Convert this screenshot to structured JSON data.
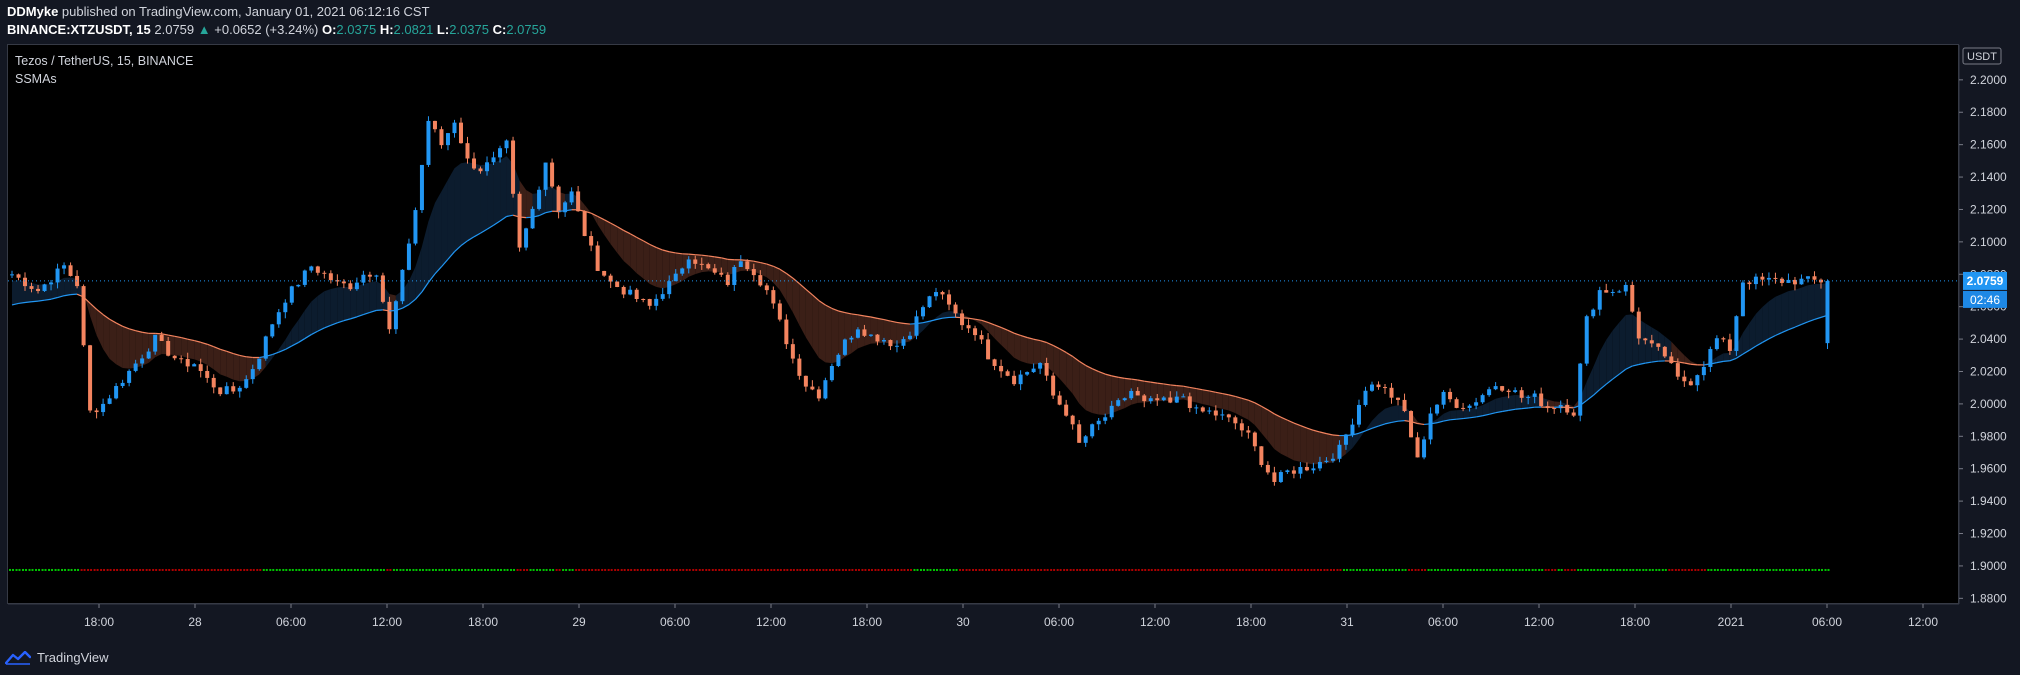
{
  "header": {
    "author": "DDMyke",
    "published_text": "published on TradingView.com, January 01, 2021 06:12:16 CST",
    "symbol": "BINANCE:XTZUSDT, 15",
    "last": "2.0759",
    "change_arrow": "▲",
    "change": "+0.0652 (+3.24%)",
    "o_label": "O:",
    "o": "2.0375",
    "h_label": "H:",
    "h": "2.0821",
    "l_label": "L:",
    "l": "2.0375",
    "c_label": "C:",
    "c": "2.0759"
  },
  "legend": {
    "title": "Tezos / TetherUS, 15, BINANCE",
    "indicator": "SSMAs"
  },
  "colors": {
    "up": "#2196f3",
    "down": "#f4845f",
    "accent_teal": "#26a69a",
    "bg": "#000000",
    "panel": "#131722",
    "dots_green": "#00c800",
    "dots_red": "#b00000"
  },
  "footer": {
    "brand": "TradingView",
    "icon": "tradingview-logo-icon"
  },
  "chart_data": {
    "type": "candlestick",
    "symbol": "XTZUSDT",
    "interval": "15",
    "currency_label": "USDT",
    "price_axis_ticks": [
      "2.2000",
      "2.1800",
      "2.1600",
      "2.1400",
      "2.1200",
      "2.1000",
      "2.0800",
      "2.0600",
      "2.0400",
      "2.0200",
      "2.0000",
      "1.9800",
      "1.9600",
      "1.9400",
      "1.9200",
      "1.9000",
      "1.8800"
    ],
    "ylim": [
      1.8765,
      2.2215
    ],
    "time_axis_labels": [
      "18:00",
      "28",
      "06:00",
      "12:00",
      "18:00",
      "29",
      "06:00",
      "12:00",
      "18:00",
      "30",
      "06:00",
      "12:00",
      "18:00",
      "31",
      "06:00",
      "12:00",
      "18:00",
      "2021",
      "06:00",
      "12:00"
    ],
    "last_price": "2.0759",
    "countdown": "02:46",
    "dots_level": 1.8975,
    "close_path": [
      [
        0,
        2.08
      ],
      [
        4,
        2.07
      ],
      [
        8,
        2.085
      ],
      [
        10,
        2.074
      ],
      [
        12,
        1.995
      ],
      [
        14,
        2.0
      ],
      [
        16,
        2.01
      ],
      [
        18,
        2.02
      ],
      [
        20,
        2.03
      ],
      [
        22,
        2.04
      ],
      [
        24,
        2.032
      ],
      [
        26,
        2.025
      ],
      [
        28,
        2.025
      ],
      [
        30,
        2.015
      ],
      [
        32,
        2.008
      ],
      [
        34,
        2.008
      ],
      [
        36,
        2.015
      ],
      [
        38,
        2.03
      ],
      [
        40,
        2.05
      ],
      [
        42,
        2.065
      ],
      [
        44,
        2.075
      ],
      [
        46,
        2.085
      ],
      [
        48,
        2.08
      ],
      [
        50,
        2.074
      ],
      [
        52,
        2.073
      ],
      [
        54,
        2.08
      ],
      [
        56,
        2.082
      ],
      [
        58,
        2.045
      ],
      [
        60,
        2.08
      ],
      [
        62,
        2.12
      ],
      [
        64,
        2.175
      ],
      [
        66,
        2.16
      ],
      [
        68,
        2.175
      ],
      [
        70,
        2.15
      ],
      [
        72,
        2.145
      ],
      [
        74,
        2.15
      ],
      [
        76,
        2.16
      ],
      [
        78,
        2.095
      ],
      [
        80,
        2.12
      ],
      [
        82,
        2.15
      ],
      [
        84,
        2.12
      ],
      [
        86,
        2.13
      ],
      [
        88,
        2.105
      ],
      [
        90,
        2.085
      ],
      [
        92,
        2.075
      ],
      [
        94,
        2.07
      ],
      [
        96,
        2.065
      ],
      [
        98,
        2.06
      ],
      [
        100,
        2.07
      ],
      [
        102,
        2.078
      ],
      [
        104,
        2.092
      ],
      [
        106,
        2.085
      ],
      [
        108,
        2.08
      ],
      [
        110,
        2.075
      ],
      [
        112,
        2.09
      ],
      [
        114,
        2.082
      ],
      [
        116,
        2.07
      ],
      [
        118,
        2.05
      ],
      [
        120,
        2.028
      ],
      [
        122,
        2.012
      ],
      [
        124,
        2.006
      ],
      [
        126,
        2.025
      ],
      [
        128,
        2.038
      ],
      [
        130,
        2.048
      ],
      [
        132,
        2.042
      ],
      [
        134,
        2.04
      ],
      [
        136,
        2.036
      ],
      [
        138,
        2.045
      ],
      [
        140,
        2.06
      ],
      [
        142,
        2.07
      ],
      [
        144,
        2.06
      ],
      [
        146,
        2.05
      ],
      [
        148,
        2.045
      ],
      [
        150,
        2.03
      ],
      [
        152,
        2.022
      ],
      [
        154,
        2.015
      ],
      [
        156,
        2.02
      ],
      [
        158,
        2.025
      ],
      [
        160,
        2.005
      ],
      [
        162,
        1.995
      ],
      [
        164,
        1.975
      ],
      [
        166,
        1.985
      ],
      [
        168,
        1.992
      ],
      [
        170,
        2.0
      ],
      [
        172,
        2.008
      ],
      [
        174,
        2.0
      ],
      [
        176,
        2.002
      ],
      [
        178,
        2.0
      ],
      [
        180,
        2.005
      ],
      [
        182,
        1.995
      ],
      [
        184,
        1.995
      ],
      [
        186,
        1.992
      ],
      [
        188,
        1.988
      ],
      [
        190,
        1.98
      ],
      [
        192,
        1.965
      ],
      [
        194,
        1.952
      ],
      [
        196,
        1.958
      ],
      [
        198,
        1.96
      ],
      [
        200,
        1.962
      ],
      [
        202,
        1.966
      ],
      [
        204,
        1.972
      ],
      [
        206,
        1.99
      ],
      [
        208,
        2.01
      ],
      [
        210,
        2.012
      ],
      [
        212,
        2.005
      ],
      [
        214,
        1.995
      ],
      [
        216,
        1.965
      ],
      [
        218,
        1.995
      ],
      [
        220,
        2.005
      ],
      [
        222,
        2.0
      ],
      [
        224,
        1.999
      ],
      [
        226,
        2.006
      ],
      [
        228,
        2.012
      ],
      [
        230,
        2.01
      ],
      [
        232,
        2.004
      ],
      [
        234,
        2.004
      ],
      [
        236,
        1.998
      ],
      [
        238,
        2.0
      ],
      [
        240,
        1.995
      ],
      [
        242,
        2.052
      ],
      [
        244,
        2.07
      ],
      [
        246,
        2.07
      ],
      [
        248,
        2.072
      ],
      [
        250,
        2.042
      ],
      [
        252,
        2.035
      ],
      [
        254,
        2.03
      ],
      [
        256,
        2.015
      ],
      [
        258,
        2.014
      ],
      [
        260,
        2.025
      ],
      [
        262,
        2.04
      ],
      [
        264,
        2.034
      ],
      [
        266,
        2.076
      ]
    ]
  }
}
